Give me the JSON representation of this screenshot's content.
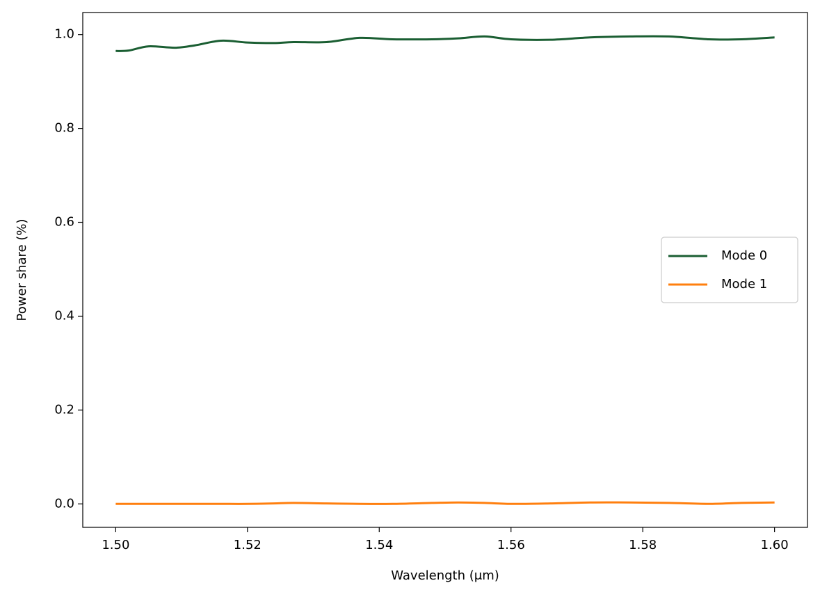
{
  "chart_data": {
    "type": "line",
    "x_label": "Wavelength (μm)",
    "y_label": "Power share (%)",
    "x": [
      1.5,
      1.502,
      1.505,
      1.509,
      1.512,
      1.516,
      1.52,
      1.524,
      1.527,
      1.532,
      1.537,
      1.542,
      1.548,
      1.552,
      1.556,
      1.56,
      1.566,
      1.572,
      1.578,
      1.584,
      1.59,
      1.595,
      1.6
    ],
    "series": [
      {
        "name": "Mode 0",
        "color": "#1a5e32",
        "values": [
          0.965,
          0.966,
          0.975,
          0.972,
          0.977,
          0.987,
          0.983,
          0.982,
          0.984,
          0.984,
          0.993,
          0.99,
          0.99,
          0.992,
          0.996,
          0.99,
          0.989,
          0.994,
          0.996,
          0.996,
          0.99,
          0.99,
          0.994
        ]
      },
      {
        "name": "Mode 1",
        "color": "#ff7f0e",
        "values": [
          0,
          0,
          0,
          0,
          0,
          0,
          0,
          0.001,
          0.002,
          0.001,
          0,
          0,
          0.002,
          0.003,
          0.002,
          0,
          0.001,
          0.003,
          0.003,
          0.002,
          0,
          0.002,
          0.003
        ]
      }
    ],
    "xlim": [
      1.495,
      1.605
    ],
    "xticks": [
      {
        "value": 1.5,
        "label": "1.50"
      },
      {
        "value": 1.52,
        "label": "1.52"
      },
      {
        "value": 1.54,
        "label": "1.54"
      },
      {
        "value": 1.56,
        "label": "1.56"
      },
      {
        "value": 1.58,
        "label": "1.58"
      },
      {
        "value": 1.6,
        "label": "1.60"
      }
    ],
    "ylim": [
      -0.05,
      1.047
    ],
    "yticks": [
      {
        "value": 0,
        "label": "0.0"
      },
      0.2,
      0.4,
      0.6,
      0.8,
      {
        "value": 1,
        "label": "1.0"
      }
    ],
    "grid": false,
    "legend": "center right"
  }
}
